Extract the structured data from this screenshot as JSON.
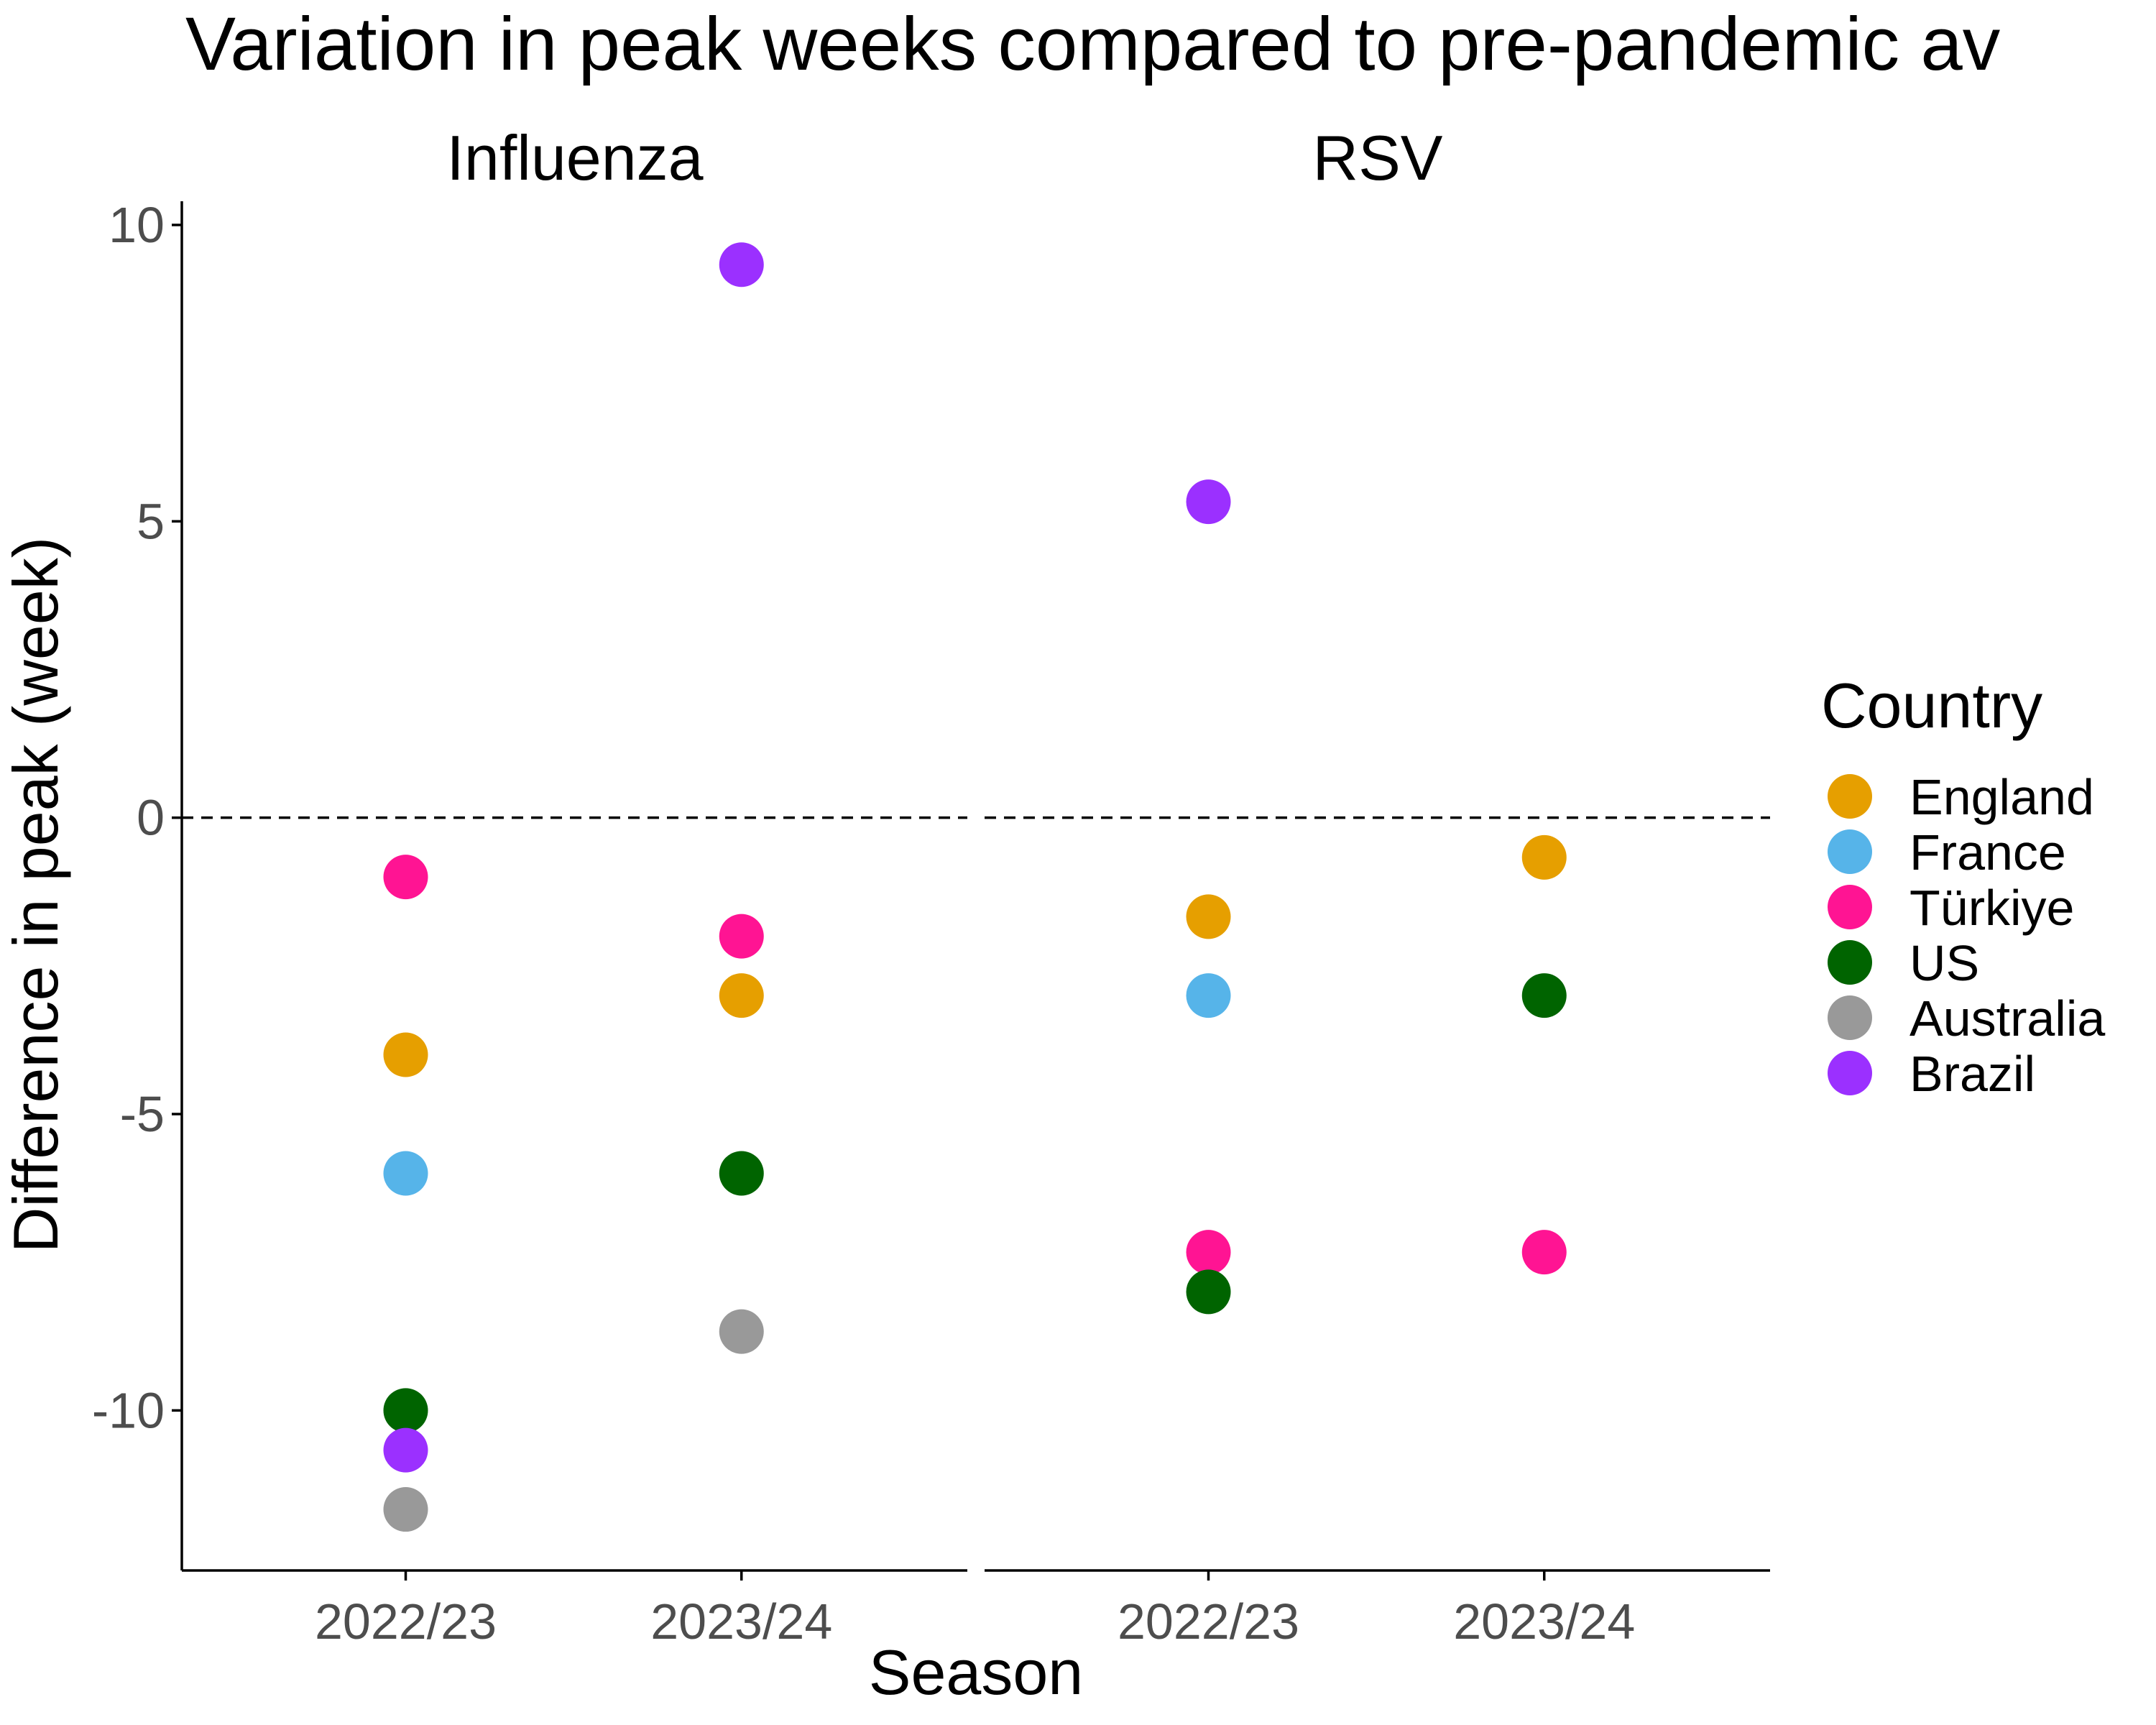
{
  "chart_data": {
    "type": "scatter",
    "title": "Variation in peak weeks compared to pre-pandemic av",
    "xlabel": "Season",
    "ylabel": "Difference in peak (week)",
    "ylim": [
      -12.7,
      10.4
    ],
    "yticks": [
      10,
      5,
      0,
      -5,
      -10
    ],
    "ytick_labels": [
      "10",
      "5",
      "0",
      "-5",
      "-10"
    ],
    "reference_line": {
      "y": 0,
      "style": "dashed"
    },
    "grid": false,
    "legend": {
      "title": "Country",
      "position": "right"
    },
    "categories": [
      "2022/23",
      "2023/24"
    ],
    "facets": [
      "Influenza",
      "RSV"
    ],
    "series": [
      {
        "name": "England",
        "color": "#E69F00",
        "points": [
          {
            "facet": "Influenza",
            "x": "2022/23",
            "y": -4
          },
          {
            "facet": "Influenza",
            "x": "2023/24",
            "y": -3
          },
          {
            "facet": "RSV",
            "x": "2022/23",
            "y": -1.67
          },
          {
            "facet": "RSV",
            "x": "2023/24",
            "y": -0.67
          }
        ]
      },
      {
        "name": "France",
        "color": "#56B4E9",
        "points": [
          {
            "facet": "Influenza",
            "x": "2022/23",
            "y": -6
          },
          {
            "facet": "RSV",
            "x": "2022/23",
            "y": -3
          }
        ]
      },
      {
        "name": "Türkiye",
        "color": "#FF1493",
        "points": [
          {
            "facet": "Influenza",
            "x": "2022/23",
            "y": -1
          },
          {
            "facet": "Influenza",
            "x": "2023/24",
            "y": -2
          },
          {
            "facet": "RSV",
            "x": "2022/23",
            "y": -7.33
          },
          {
            "facet": "RSV",
            "x": "2023/24",
            "y": -7.33
          }
        ]
      },
      {
        "name": "US",
        "color": "#006400",
        "points": [
          {
            "facet": "Influenza",
            "x": "2022/23",
            "y": -10
          },
          {
            "facet": "Influenza",
            "x": "2023/24",
            "y": -6
          },
          {
            "facet": "RSV",
            "x": "2022/23",
            "y": -8
          },
          {
            "facet": "RSV",
            "x": "2023/24",
            "y": -3
          }
        ]
      },
      {
        "name": "Australia",
        "color": "#999999",
        "points": [
          {
            "facet": "Influenza",
            "x": "2022/23",
            "y": -11.67
          },
          {
            "facet": "Influenza",
            "x": "2023/24",
            "y": -8.67
          }
        ]
      },
      {
        "name": "Brazil",
        "color": "#9B30FF",
        "points": [
          {
            "facet": "Influenza",
            "x": "2022/23",
            "y": -10.67
          },
          {
            "facet": "Influenza",
            "x": "2023/24",
            "y": 9.33
          },
          {
            "facet": "RSV",
            "x": "2022/23",
            "y": 5.33
          }
        ]
      }
    ]
  }
}
